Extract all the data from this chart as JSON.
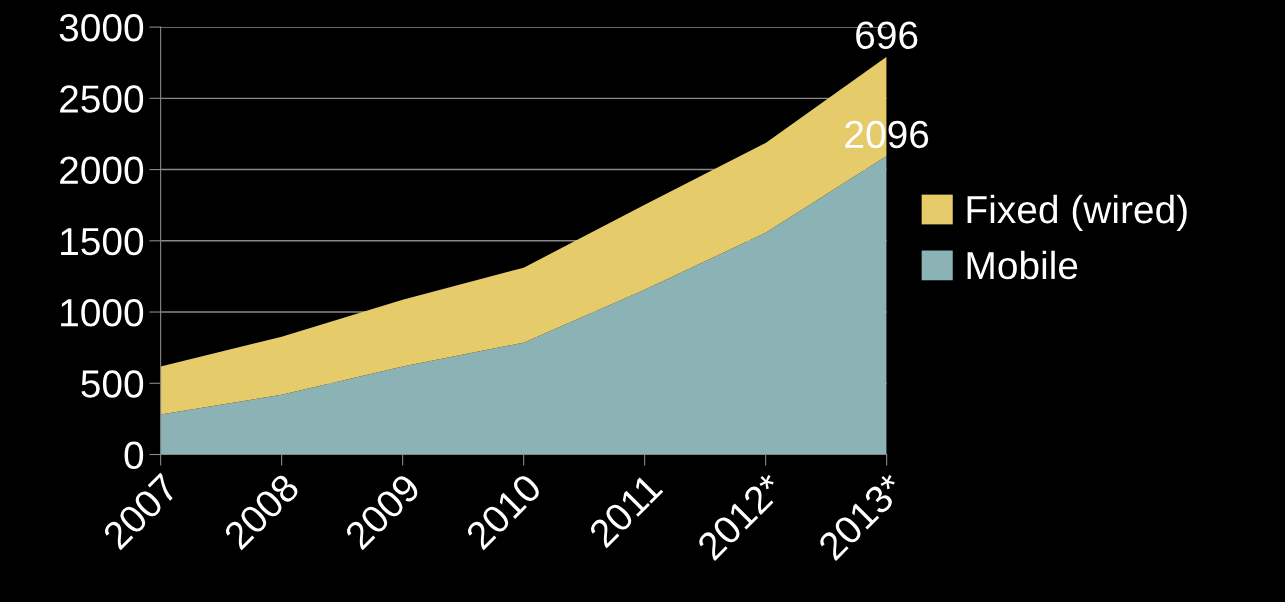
{
  "chart_data": {
    "type": "area",
    "stacked": true,
    "categories": [
      "2007",
      "2008",
      "2009",
      "2010",
      "2011",
      "2012*",
      "2013*"
    ],
    "series": [
      {
        "name": "Mobile",
        "color": "#8bb3b5",
        "values": [
          280,
          420,
          617,
          785,
          1157,
          1556,
          2096
        ],
        "value_labels": [
          null,
          null,
          null,
          null,
          null,
          null,
          "2096"
        ]
      },
      {
        "name": "Fixed (wired)",
        "color": "#e6cb6b",
        "values": [
          337,
          407,
          470,
          526,
          596,
          631,
          696
        ],
        "value_labels": [
          null,
          null,
          null,
          null,
          null,
          null,
          "696"
        ]
      }
    ],
    "ylim": [
      0,
      3000
    ],
    "yticks": [
      0,
      500,
      1000,
      1500,
      2000,
      2500,
      3000
    ],
    "grid": "y",
    "legend": "right"
  }
}
